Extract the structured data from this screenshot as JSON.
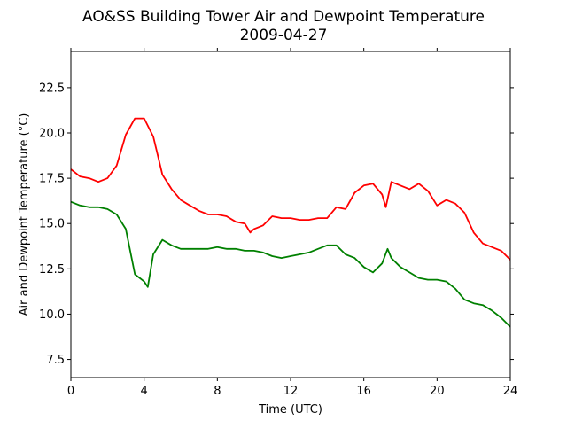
{
  "chart_data": {
    "type": "line",
    "title": "AO&SS Building Tower Air and Dewpoint Temperature",
    "subtitle": "2009-04-27",
    "xlabel": "Time (UTC)",
    "ylabel": "Air and Dewpoint Temperature (°C)",
    "xlim": [
      0,
      24
    ],
    "ylim": [
      6.5,
      24.5
    ],
    "x_ticks": [
      "0",
      "4",
      "8",
      "12",
      "16",
      "20",
      "24"
    ],
    "y_ticks": [
      "7.5",
      "10.0",
      "12.5",
      "15.0",
      "17.5",
      "20.0",
      "22.5"
    ],
    "grid": false,
    "series": [
      {
        "color": "#ff0000",
        "x": [
          0,
          0.5,
          1,
          1.5,
          2,
          2.5,
          3,
          3.5,
          4,
          4.5,
          5,
          5.5,
          6,
          6.5,
          7,
          7.5,
          8,
          8.5,
          9,
          9.5,
          9.8,
          10,
          10.5,
          11,
          11.5,
          12,
          12.5,
          13,
          13.5,
          14,
          14.5,
          15,
          15.5,
          16,
          16.5,
          17,
          17.2,
          17.5,
          18,
          18.5,
          19,
          19.5,
          20,
          20.5,
          21,
          21.5,
          22,
          22.5,
          23,
          23.5,
          24
        ],
        "y": [
          18.0,
          17.6,
          17.5,
          17.3,
          17.5,
          18.2,
          19.9,
          20.8,
          20.8,
          19.8,
          17.7,
          16.9,
          16.3,
          16.0,
          15.7,
          15.5,
          15.5,
          15.4,
          15.1,
          15.0,
          14.5,
          14.7,
          14.9,
          15.4,
          15.3,
          15.3,
          15.2,
          15.2,
          15.3,
          15.3,
          15.9,
          15.8,
          16.7,
          17.1,
          17.2,
          16.6,
          15.9,
          17.3,
          17.1,
          16.9,
          17.2,
          16.8,
          16.0,
          16.3,
          16.1,
          15.6,
          14.5,
          13.9,
          13.7,
          13.5,
          13.0
        ]
      },
      {
        "color": "#008000",
        "x": [
          0,
          0.5,
          1,
          1.5,
          2,
          2.5,
          3,
          3.5,
          4,
          4.2,
          4.5,
          5,
          5.5,
          6,
          6.5,
          7,
          7.5,
          8,
          8.5,
          9,
          9.5,
          10,
          10.5,
          11,
          11.5,
          12,
          12.5,
          13,
          13.5,
          14,
          14.5,
          15,
          15.5,
          16,
          16.5,
          17,
          17.3,
          17.5,
          18,
          18.5,
          19,
          19.5,
          20,
          20.5,
          21,
          21.5,
          22,
          22.5,
          23,
          23.5,
          24
        ],
        "y": [
          16.2,
          16.0,
          15.9,
          15.9,
          15.8,
          15.5,
          14.7,
          12.2,
          11.8,
          11.5,
          13.3,
          14.1,
          13.8,
          13.6,
          13.6,
          13.6,
          13.6,
          13.7,
          13.6,
          13.6,
          13.5,
          13.5,
          13.4,
          13.2,
          13.1,
          13.2,
          13.3,
          13.4,
          13.6,
          13.8,
          13.8,
          13.3,
          13.1,
          12.6,
          12.3,
          12.8,
          13.6,
          13.1,
          12.6,
          12.3,
          12.0,
          11.9,
          11.9,
          11.8,
          11.4,
          10.8,
          10.6,
          10.5,
          10.2,
          9.8,
          9.3
        ]
      }
    ]
  }
}
